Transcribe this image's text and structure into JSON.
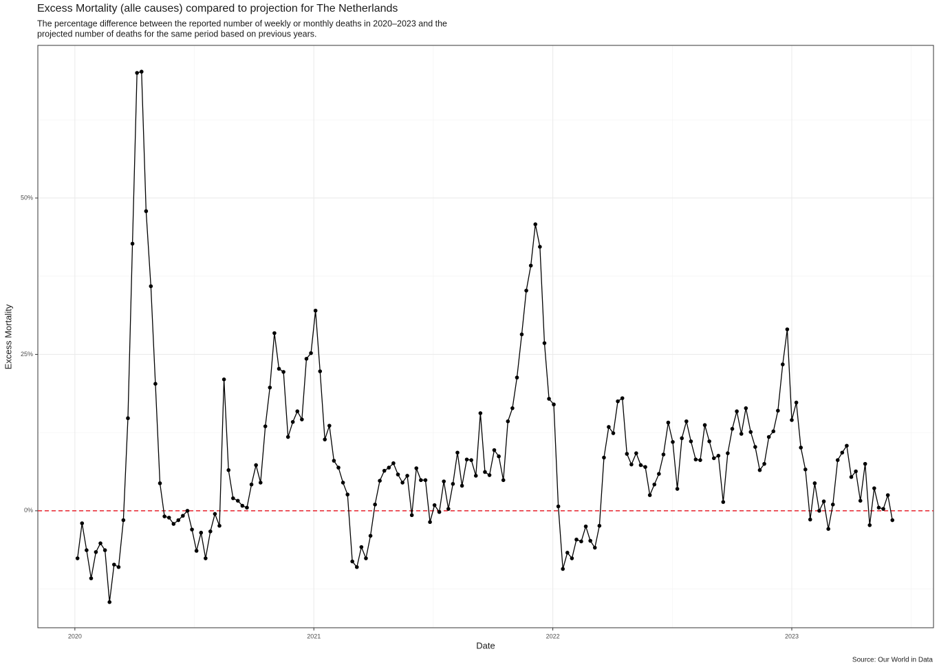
{
  "chart_data": {
    "type": "line",
    "title": "Excess Mortality (alle causes) compared to projection for The Netherlands",
    "subtitle": [
      "The percentage difference between the reported number of weekly or monthly deaths in 2020–2023 and the",
      "projected number of deaths for the same period based on previous years."
    ],
    "xlabel": "Date",
    "ylabel": "Excess Mortality",
    "caption": "Source: Our World in Data",
    "xlim": [
      2019.845,
      2023.593
    ],
    "xticks": [
      2020,
      2021,
      2022,
      2023
    ],
    "ylim": [
      -18.7,
      74.4
    ],
    "yticks": [
      {
        "value": 0,
        "label": "0%"
      },
      {
        "value": 25,
        "label": "25%"
      },
      {
        "value": 50,
        "label": "50%"
      }
    ],
    "grid": true,
    "hline": {
      "value": 0,
      "color": "#e8202a"
    },
    "x": [
      2020.011,
      2020.03,
      2020.049,
      2020.068,
      2020.088,
      2020.107,
      2020.126,
      2020.145,
      2020.164,
      2020.183,
      2020.203,
      2020.222,
      2020.241,
      2020.26,
      2020.279,
      2020.298,
      2020.318,
      2020.337,
      2020.356,
      2020.375,
      2020.394,
      2020.413,
      2020.433,
      2020.452,
      2020.471,
      2020.49,
      2020.509,
      2020.528,
      2020.547,
      2020.567,
      2020.586,
      2020.605,
      2020.624,
      2020.643,
      2020.662,
      2020.682,
      2020.701,
      2020.72,
      2020.739,
      2020.758,
      2020.777,
      2020.797,
      2020.816,
      2020.835,
      2020.854,
      2020.873,
      2020.892,
      2020.912,
      2020.931,
      2020.95,
      2020.969,
      2020.988,
      2021.007,
      2021.026,
      2021.046,
      2021.065,
      2021.084,
      2021.103,
      2021.122,
      2021.141,
      2021.161,
      2021.18,
      2021.199,
      2021.218,
      2021.237,
      2021.256,
      2021.276,
      2021.295,
      2021.314,
      2021.333,
      2021.352,
      2021.371,
      2021.391,
      2021.41,
      2021.429,
      2021.448,
      2021.467,
      2021.486,
      2021.505,
      2021.525,
      2021.544,
      2021.563,
      2021.582,
      2021.601,
      2021.62,
      2021.64,
      2021.659,
      2021.678,
      2021.697,
      2021.716,
      2021.735,
      2021.755,
      2021.774,
      2021.793,
      2021.812,
      2021.831,
      2021.85,
      2021.87,
      2021.889,
      2021.908,
      2021.927,
      2021.946,
      2021.965,
      2021.984,
      2022.004,
      2022.023,
      2022.042,
      2022.061,
      2022.08,
      2022.099,
      2022.119,
      2022.138,
      2022.157,
      2022.176,
      2022.195,
      2022.214,
      2022.234,
      2022.253,
      2022.272,
      2022.291,
      2022.31,
      2022.329,
      2022.349,
      2022.368,
      2022.387,
      2022.406,
      2022.425,
      2022.444,
      2022.463,
      2022.483,
      2022.502,
      2022.521,
      2022.54,
      2022.559,
      2022.578,
      2022.598,
      2022.617,
      2022.636,
      2022.655,
      2022.674,
      2022.693,
      2022.713,
      2022.732,
      2022.751,
      2022.77,
      2022.789,
      2022.808,
      2022.828,
      2022.847,
      2022.866,
      2022.885,
      2022.904,
      2022.923,
      2022.942,
      2022.962,
      2022.981,
      2023.0,
      2023.019,
      2023.038,
      2023.057,
      2023.077,
      2023.096,
      2023.115,
      2023.134,
      2023.153,
      2023.172,
      2023.192,
      2023.211,
      2023.23,
      2023.249,
      2023.268,
      2023.287,
      2023.307,
      2023.326,
      2023.345,
      2023.364,
      2023.383,
      2023.402,
      2023.421
    ],
    "series": [
      {
        "color": "#000000",
        "values": [
          -7.6,
          -2.0,
          -6.3,
          -10.8,
          -6.6,
          -5.2,
          -6.3,
          -14.6,
          -8.6,
          -9.0,
          -1.5,
          14.8,
          42.7,
          70.0,
          70.2,
          47.9,
          35.9,
          20.3,
          4.4,
          -0.9,
          -1.1,
          -2.1,
          -1.5,
          -0.8,
          0,
          -3.0,
          -6.4,
          -3.5,
          -7.6,
          -3.3,
          -0.5,
          -2.4,
          21.0,
          6.5,
          2.0,
          1.6,
          0.8,
          0.5,
          4.2,
          7.3,
          4.5,
          13.5,
          19.7,
          28.4,
          22.7,
          22.2,
          11.8,
          14.2,
          15.9,
          14.6,
          24.3,
          25.2,
          32.0,
          22.3,
          11.4,
          13.6,
          8.0,
          6.9,
          4.5,
          2.6,
          -8.1,
          -9.0,
          -5.8,
          -7.6,
          -4.0,
          1.0,
          4.8,
          6.4,
          6.9,
          7.6,
          5.8,
          4.5,
          5.6,
          -0.7,
          6.8,
          4.9,
          4.9,
          -1.8,
          0.9,
          -0.2,
          4.7,
          0.3,
          4.3,
          9.3,
          4.0,
          8.2,
          8.1,
          5.6,
          15.6,
          6.2,
          5.7,
          9.7,
          8.7,
          4.9,
          14.3,
          16.4,
          21.3,
          28.2,
          35.2,
          39.2,
          45.8,
          42.2,
          26.8,
          17.9,
          17.0,
          0.7,
          -9.3,
          -6.7,
          -7.6,
          -4.6,
          -4.9,
          -2.5,
          -4.8,
          -5.9,
          -2.4,
          8.5,
          13.4,
          12.4,
          17.5,
          18.0,
          9.1,
          7.4,
          9.2,
          7.3,
          7.0,
          2.5,
          4.2,
          5.9,
          9.0,
          14.1,
          11.0,
          3.5,
          11.6,
          14.3,
          11.1,
          8.2,
          8.1,
          13.7,
          11.1,
          8.4,
          8.8,
          1.4,
          9.2,
          13.1,
          15.9,
          12.3,
          16.4,
          12.6,
          10.2,
          6.5,
          7.5,
          11.8,
          12.7,
          16.0,
          23.4,
          29.0,
          14.5,
          17.3,
          10.1,
          6.6,
          -1.4,
          4.4,
          0,
          1.5,
          -2.9,
          1.0,
          8.1,
          9.3,
          10.4,
          5.4,
          6.3,
          1.6,
          7.5,
          -2.3,
          3.6,
          0.5,
          0.3,
          2.5,
          -1.5
        ]
      }
    ]
  }
}
